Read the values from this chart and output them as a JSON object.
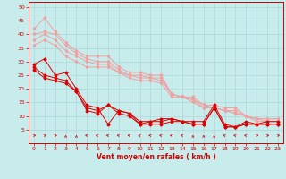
{
  "title": "",
  "xlabel": "Vent moyen/en rafales ( km/h )",
  "xlim": [
    -0.5,
    23.5
  ],
  "ylim": [
    0,
    52
  ],
  "yticks": [
    5,
    10,
    15,
    20,
    25,
    30,
    35,
    40,
    45,
    50
  ],
  "xticks": [
    0,
    1,
    2,
    3,
    4,
    5,
    6,
    7,
    8,
    9,
    10,
    11,
    12,
    13,
    14,
    15,
    16,
    17,
    18,
    19,
    20,
    21,
    22,
    23
  ],
  "bg_color": "#c8ecec",
  "grid_color": "#aad8d8",
  "lines_light": [
    {
      "y": [
        42,
        46,
        41,
        37,
        34,
        32,
        32,
        32,
        28,
        26,
        26,
        25,
        25,
        18,
        17,
        17,
        14,
        14,
        13,
        13,
        10,
        9,
        9,
        9
      ]
    },
    {
      "y": [
        40,
        41,
        40,
        36,
        33,
        31,
        30,
        30,
        27,
        25,
        25,
        24,
        24,
        18,
        17,
        16,
        14,
        13,
        12,
        12,
        10,
        9,
        9,
        9
      ]
    },
    {
      "y": [
        38,
        40,
        38,
        34,
        32,
        30,
        29,
        29,
        26,
        25,
        24,
        24,
        23,
        18,
        17,
        16,
        13,
        13,
        12,
        11,
        10,
        9,
        8,
        8
      ]
    },
    {
      "y": [
        36,
        38,
        36,
        32,
        30,
        28,
        28,
        28,
        26,
        24,
        23,
        23,
        22,
        17,
        17,
        15,
        13,
        13,
        12,
        11,
        10,
        8,
        8,
        8
      ]
    }
  ],
  "lines_dark": [
    {
      "y": [
        29,
        31,
        25,
        26,
        20,
        14,
        13,
        7,
        12,
        11,
        8,
        8,
        9,
        9,
        8,
        8,
        8,
        14,
        7,
        6,
        8,
        7,
        8,
        8
      ]
    },
    {
      "y": [
        28,
        25,
        24,
        23,
        19,
        13,
        12,
        14,
        12,
        11,
        7,
        8,
        8,
        9,
        8,
        7,
        7,
        13,
        6,
        6,
        7,
        7,
        7,
        7
      ]
    },
    {
      "y": [
        27,
        24,
        23,
        22,
        19,
        12,
        11,
        14,
        11,
        10,
        7,
        7,
        7,
        8,
        8,
        7,
        7,
        13,
        6,
        6,
        7,
        7,
        7,
        7
      ]
    }
  ],
  "color_light": "#f0a0a0",
  "color_dark": "#dd0000",
  "wind_dirs": [
    45,
    45,
    45,
    0,
    0,
    315,
    315,
    315,
    315,
    315,
    315,
    315,
    315,
    315,
    315,
    0,
    0,
    0,
    315,
    315,
    315,
    45,
    45,
    45
  ]
}
